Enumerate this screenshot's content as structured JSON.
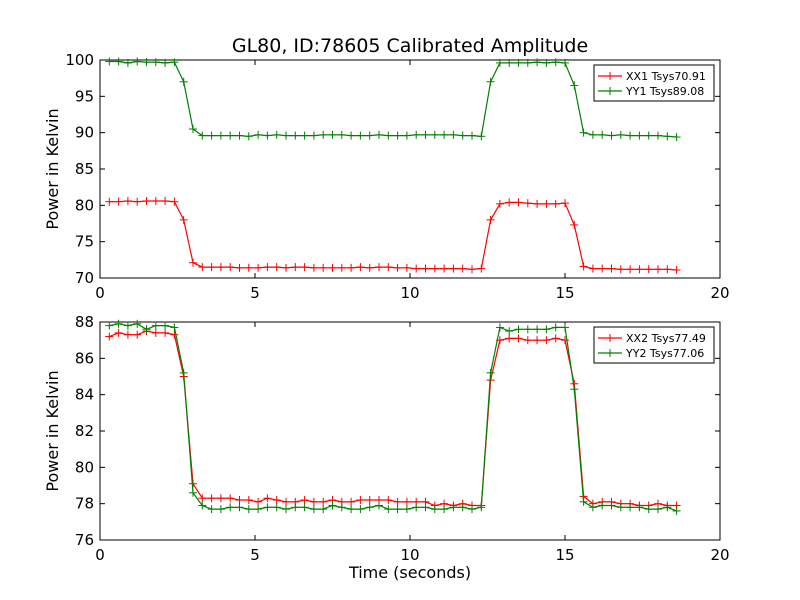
{
  "figure_title": "GL80, ID:78605 Calibrated Amplitude",
  "colors": {
    "red": "#ff0000",
    "green": "#008000"
  },
  "chart_data": [
    {
      "type": "line",
      "title": "GL80, ID:78605 Calibrated Amplitude",
      "xlabel": "",
      "ylabel": "Power in Kelvin",
      "xlim": [
        0,
        20
      ],
      "ylim": [
        70,
        100
      ],
      "xticks": [
        0,
        5,
        10,
        15,
        20
      ],
      "yticks": [
        70,
        75,
        80,
        85,
        90,
        95,
        100
      ],
      "grid": false,
      "legend_position": "top-right",
      "x": [
        0.3,
        0.6,
        0.9,
        1.2,
        1.5,
        1.8,
        2.1,
        2.4,
        2.7,
        3.0,
        3.3,
        3.6,
        3.9,
        4.2,
        4.5,
        4.8,
        5.1,
        5.4,
        5.7,
        6.0,
        6.3,
        6.6,
        6.9,
        7.2,
        7.5,
        7.8,
        8.1,
        8.4,
        8.7,
        9.0,
        9.3,
        9.6,
        9.9,
        10.2,
        10.5,
        10.8,
        11.1,
        11.4,
        11.7,
        12.0,
        12.3,
        12.6,
        12.9,
        13.2,
        13.5,
        13.8,
        14.1,
        14.4,
        14.7,
        15.0,
        15.3,
        15.6,
        15.9,
        16.2,
        16.5,
        16.8,
        17.1,
        17.4,
        17.7,
        18.0,
        18.3,
        18.6
      ],
      "series": [
        {
          "name": "XX1 Tsys70.91",
          "color": "#ff0000",
          "values": [
            80.5,
            80.5,
            80.6,
            80.5,
            80.6,
            80.6,
            80.6,
            80.5,
            78.0,
            72.1,
            71.5,
            71.5,
            71.5,
            71.5,
            71.4,
            71.4,
            71.4,
            71.5,
            71.5,
            71.4,
            71.5,
            71.5,
            71.4,
            71.4,
            71.4,
            71.4,
            71.4,
            71.5,
            71.4,
            71.5,
            71.5,
            71.4,
            71.4,
            71.3,
            71.3,
            71.3,
            71.3,
            71.3,
            71.3,
            71.2,
            71.3,
            78.0,
            80.2,
            80.4,
            80.4,
            80.3,
            80.2,
            80.2,
            80.2,
            80.3,
            77.3,
            71.6,
            71.3,
            71.3,
            71.3,
            71.2,
            71.2,
            71.2,
            71.2,
            71.2,
            71.2,
            71.1
          ]
        },
        {
          "name": "YY1 Tsys89.08",
          "color": "#008000",
          "values": [
            99.8,
            99.8,
            99.6,
            99.8,
            99.7,
            99.7,
            99.6,
            99.7,
            97.0,
            90.5,
            89.6,
            89.6,
            89.6,
            89.6,
            89.6,
            89.5,
            89.7,
            89.6,
            89.7,
            89.6,
            89.6,
            89.6,
            89.6,
            89.7,
            89.7,
            89.7,
            89.6,
            89.6,
            89.6,
            89.7,
            89.6,
            89.6,
            89.6,
            89.7,
            89.7,
            89.7,
            89.7,
            89.7,
            89.6,
            89.6,
            89.5,
            97.0,
            99.6,
            99.6,
            99.6,
            99.6,
            99.7,
            99.6,
            99.7,
            99.6,
            96.5,
            90.0,
            89.7,
            89.7,
            89.6,
            89.7,
            89.6,
            89.6,
            89.6,
            89.6,
            89.5,
            89.4
          ]
        }
      ]
    },
    {
      "type": "line",
      "title": "",
      "xlabel": "Time (seconds)",
      "ylabel": "Power in Kelvin",
      "xlim": [
        0,
        20
      ],
      "ylim": [
        76,
        88
      ],
      "xticks": [
        0,
        5,
        10,
        15,
        20
      ],
      "yticks": [
        76,
        78,
        80,
        82,
        84,
        86,
        88
      ],
      "grid": false,
      "legend_position": "top-right",
      "x": [
        0.3,
        0.6,
        0.9,
        1.2,
        1.5,
        1.8,
        2.1,
        2.4,
        2.7,
        3.0,
        3.3,
        3.6,
        3.9,
        4.2,
        4.5,
        4.8,
        5.1,
        5.4,
        5.7,
        6.0,
        6.3,
        6.6,
        6.9,
        7.2,
        7.5,
        7.8,
        8.1,
        8.4,
        8.7,
        9.0,
        9.3,
        9.6,
        9.9,
        10.2,
        10.5,
        10.8,
        11.1,
        11.4,
        11.7,
        12.0,
        12.3,
        12.6,
        12.9,
        13.2,
        13.5,
        13.8,
        14.1,
        14.4,
        14.7,
        15.0,
        15.3,
        15.6,
        15.9,
        16.2,
        16.5,
        16.8,
        17.1,
        17.4,
        17.7,
        18.0,
        18.3,
        18.6
      ],
      "series": [
        {
          "name": "XX2 Tsys77.49",
          "color": "#ff0000",
          "values": [
            87.2,
            87.4,
            87.3,
            87.3,
            87.5,
            87.4,
            87.4,
            87.3,
            85.0,
            79.1,
            78.3,
            78.3,
            78.3,
            78.3,
            78.2,
            78.2,
            78.1,
            78.3,
            78.2,
            78.1,
            78.1,
            78.2,
            78.1,
            78.1,
            78.2,
            78.1,
            78.1,
            78.2,
            78.2,
            78.2,
            78.2,
            78.1,
            78.1,
            78.1,
            78.1,
            77.9,
            78.0,
            77.9,
            78.0,
            77.9,
            77.9,
            84.8,
            87.0,
            87.1,
            87.1,
            87.0,
            87.0,
            87.0,
            87.1,
            87.0,
            84.6,
            78.4,
            78.0,
            78.1,
            78.1,
            78.0,
            78.0,
            77.9,
            77.9,
            78.0,
            77.9,
            77.9
          ]
        },
        {
          "name": "YY2 Tsys77.06",
          "color": "#008000",
          "values": [
            87.8,
            87.9,
            87.8,
            87.9,
            87.6,
            87.8,
            87.8,
            87.7,
            85.2,
            78.6,
            77.9,
            77.7,
            77.7,
            77.8,
            77.8,
            77.7,
            77.7,
            77.8,
            77.8,
            77.7,
            77.8,
            77.8,
            77.7,
            77.7,
            77.9,
            77.8,
            77.7,
            77.7,
            77.8,
            77.9,
            77.7,
            77.7,
            77.7,
            77.8,
            77.8,
            77.7,
            77.7,
            77.8,
            77.8,
            77.7,
            77.8,
            85.2,
            87.7,
            87.5,
            87.6,
            87.6,
            87.6,
            87.6,
            87.7,
            87.7,
            84.3,
            78.1,
            77.8,
            77.9,
            77.9,
            77.8,
            77.8,
            77.8,
            77.7,
            77.7,
            77.8,
            77.6
          ]
        }
      ]
    }
  ]
}
